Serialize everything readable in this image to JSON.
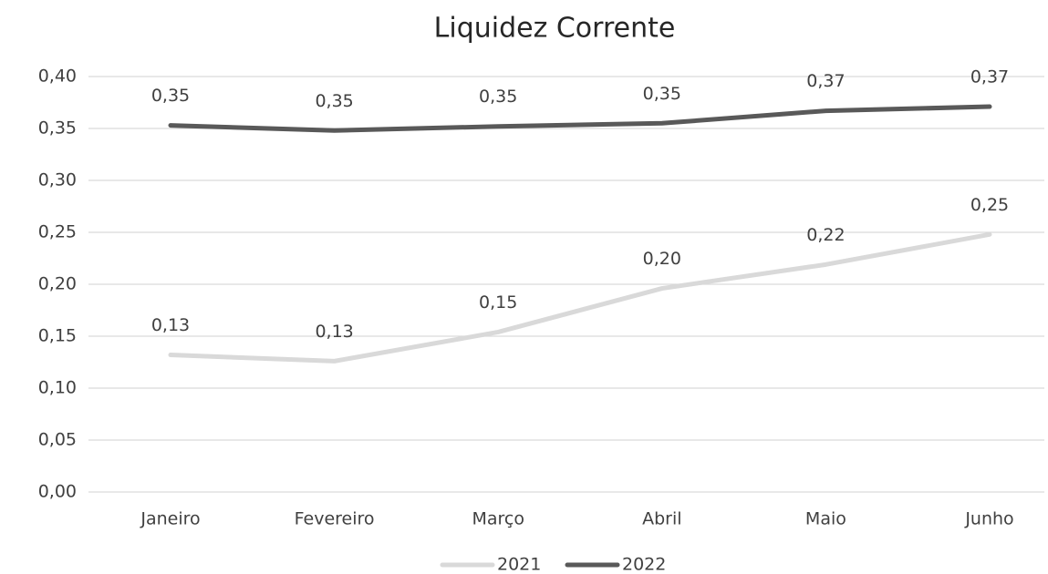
{
  "chart_data": {
    "type": "line",
    "title": "Liquidez Corrente",
    "categories": [
      "Janeiro",
      "Fevereiro",
      "Março",
      "Abril",
      "Maio",
      "Junho"
    ],
    "series": [
      {
        "name": "2021",
        "color": "#d9d9d9",
        "values": [
          0.132,
          0.126,
          0.154,
          0.196,
          0.219,
          0.248
        ],
        "value_labels": [
          "0,13",
          "0,13",
          "0,15",
          "0,20",
          "0,22",
          "0,25"
        ]
      },
      {
        "name": "2022",
        "color": "#595959",
        "values": [
          0.353,
          0.348,
          0.352,
          0.355,
          0.367,
          0.371
        ],
        "value_labels": [
          "0,35",
          "0,35",
          "0,35",
          "0,35",
          "0,37",
          "0,37"
        ]
      }
    ],
    "ylim": [
      0,
      0.4
    ],
    "yticks": [
      {
        "value": 0,
        "label": "0,00"
      },
      {
        "value": 0.05,
        "label": "0,05"
      },
      {
        "value": 0.1,
        "label": "0,10"
      },
      {
        "value": 0.15,
        "label": "0,15"
      },
      {
        "value": 0.2,
        "label": "0,20"
      },
      {
        "value": 0.25,
        "label": "0,25"
      },
      {
        "value": 0.3,
        "label": "0,30"
      },
      {
        "value": 0.35,
        "label": "0,35"
      },
      {
        "value": 0.4,
        "label": "0,40"
      }
    ],
    "grid": true,
    "legend": "bottom"
  }
}
